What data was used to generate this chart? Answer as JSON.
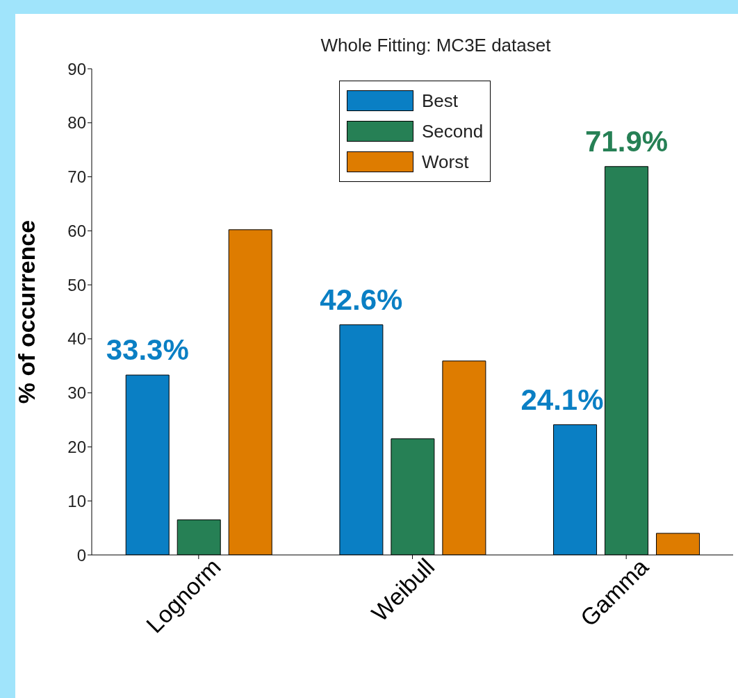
{
  "chart_data": {
    "type": "bar",
    "title": "Whole Fitting: MC3E dataset",
    "ylabel": "% of occurrence",
    "categories": [
      "Lognorm",
      "Weibull",
      "Gamma"
    ],
    "series": [
      {
        "name": "Best",
        "color": "#0a7fc4",
        "values": [
          33.3,
          42.6,
          24.1
        ],
        "value_labels": [
          "33.3%",
          "42.6%",
          "24.1%"
        ]
      },
      {
        "name": "Second",
        "color": "#268055",
        "values": [
          6.5,
          21.5,
          71.9
        ],
        "value_labels": [
          null,
          null,
          "71.9%"
        ]
      },
      {
        "name": "Worst",
        "color": "#de7c00",
        "values": [
          60.2,
          35.9,
          4.0
        ],
        "value_labels": [
          null,
          null,
          null
        ]
      }
    ],
    "ylim": [
      0,
      90
    ],
    "yticks": [
      0,
      10,
      20,
      30,
      40,
      50,
      60,
      70,
      80,
      90
    ],
    "legend": "top"
  }
}
